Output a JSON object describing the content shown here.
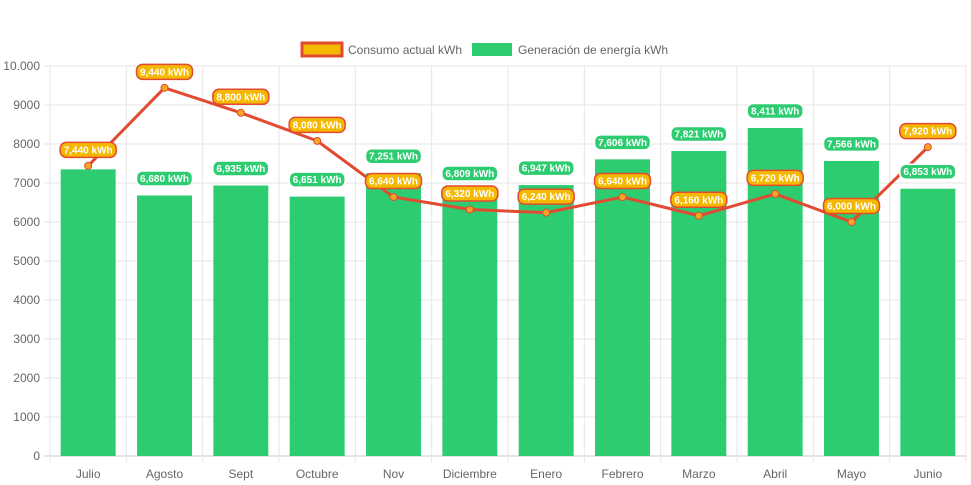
{
  "chart_data": {
    "type": "bar",
    "categories": [
      "Julio",
      "Agosto",
      "Sept",
      "Octubre",
      "Nov",
      "Diciembre",
      "Enero",
      "Febrero",
      "Marzo",
      "Abril",
      "Mayo",
      "Junio"
    ],
    "ylim": [
      0,
      10000
    ],
    "yticks": [
      0,
      1000,
      2000,
      3000,
      4000,
      5000,
      6000,
      7000,
      8000,
      9000,
      10000
    ],
    "ytick_labels": [
      "0",
      "1000",
      "2000",
      "3000",
      "4000",
      "5000",
      "6000",
      "7000",
      "8000",
      "9000",
      "10.000"
    ],
    "grid": true,
    "legend_position": "top-center",
    "series": [
      {
        "name": "Consumo actual kWh",
        "type": "line",
        "color": "#e14b32",
        "label_color": "#f5b800",
        "values": [
          7440,
          9440,
          8800,
          8080,
          6640,
          6320,
          6240,
          6640,
          6160,
          6720,
          6000,
          7920
        ],
        "labels": [
          "7,440 kWh",
          "9,440 kWh",
          "8,800 kWh",
          "8,080 kWh",
          "6,640 kWh",
          "6,320 kWh",
          "6,240 kWh",
          "6,640 kWh",
          "6,160 kWh",
          "6,720 kWh",
          "6,000 kWh",
          "7,920 kWh"
        ]
      },
      {
        "name": "Generación de energía kWh",
        "type": "bar",
        "color": "#2ecc71",
        "values": [
          7350,
          6680,
          6935,
          6651,
          7251,
          6809,
          6947,
          7606,
          7821,
          8411,
          7566,
          6853
        ],
        "labels": [
          "",
          "6,680 kWh",
          "6,935 kWh",
          "6,651 kWh",
          "7,251 kWh",
          "6,809 kWh",
          "6,947 kWh",
          "7,606 kWh",
          "7,821 kWh",
          "8,411 kWh",
          "7,566 kWh",
          "6,853 kWh"
        ]
      }
    ]
  }
}
